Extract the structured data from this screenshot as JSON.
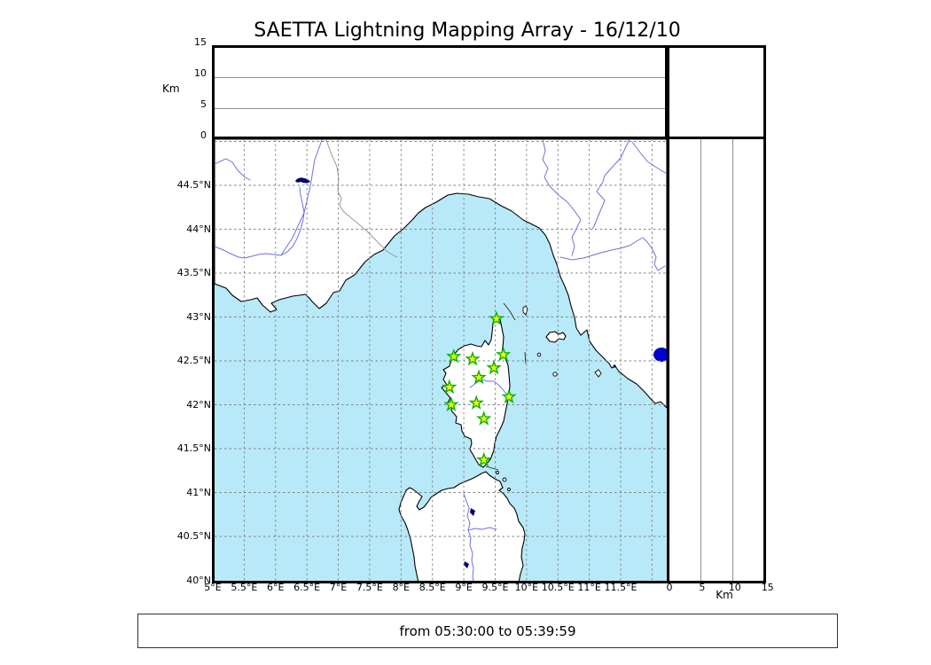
{
  "title": "SAETTA Lightning Mapping Array - 16/12/10",
  "footer": {
    "time_range": "from 05:30:00 to 05:39:59"
  },
  "altitude_axis": {
    "label": "Km",
    "ticks": [
      {
        "v": 0,
        "label": "0"
      },
      {
        "v": 5,
        "label": "5"
      },
      {
        "v": 10,
        "label": "10"
      },
      {
        "v": 15,
        "label": "15"
      }
    ]
  },
  "map": {
    "lon_ticks": [
      {
        "v": 5,
        "label": "5°E"
      },
      {
        "v": 5.5,
        "label": "5.5°E"
      },
      {
        "v": 6,
        "label": "6°E"
      },
      {
        "v": 6.5,
        "label": "6.5°E"
      },
      {
        "v": 7,
        "label": "7°E"
      },
      {
        "v": 7.5,
        "label": "7.5°E"
      },
      {
        "v": 8,
        "label": "8°E"
      },
      {
        "v": 8.5,
        "label": "8.5°E"
      },
      {
        "v": 9,
        "label": "9°E"
      },
      {
        "v": 9.5,
        "label": "9.5°E"
      },
      {
        "v": 10,
        "label": "10°E"
      },
      {
        "v": 10.5,
        "label": "10.5°E"
      },
      {
        "v": 11,
        "label": "11°E"
      },
      {
        "v": 11.5,
        "label": "11.5°E"
      }
    ],
    "lat_ticks": [
      {
        "v": 40,
        "label": "40°N"
      },
      {
        "v": 40.5,
        "label": "40.5°N"
      },
      {
        "v": 41,
        "label": "41°N"
      },
      {
        "v": 41.5,
        "label": "41.5°N"
      },
      {
        "v": 42,
        "label": "42°N"
      },
      {
        "v": 42.5,
        "label": "42.5°N"
      },
      {
        "v": 43,
        "label": "43°N"
      },
      {
        "v": 43.5,
        "label": "43.5°N"
      },
      {
        "v": 44,
        "label": "44°N"
      },
      {
        "v": 44.5,
        "label": "44.5°N"
      }
    ],
    "stations": [
      {
        "lon": 9.52,
        "lat": 42.98
      },
      {
        "lon": 8.84,
        "lat": 42.55
      },
      {
        "lon": 9.14,
        "lat": 42.52
      },
      {
        "lon": 9.63,
        "lat": 42.57
      },
      {
        "lon": 9.48,
        "lat": 42.42
      },
      {
        "lon": 9.24,
        "lat": 42.31
      },
      {
        "lon": 8.77,
        "lat": 42.2
      },
      {
        "lon": 9.72,
        "lat": 42.09
      },
      {
        "lon": 9.2,
        "lat": 42.02
      },
      {
        "lon": 8.8,
        "lat": 42.0
      },
      {
        "lon": 9.32,
        "lat": 41.84
      },
      {
        "lon": 9.32,
        "lat": 41.37
      }
    ],
    "colors": {
      "sea": "#b8e9f8",
      "land": "#ffffff",
      "river": "#6f6fe0",
      "lake": "#0000cc",
      "dark_lake": "#000066",
      "grid": "#808080",
      "station_fill": "#ffff00",
      "station_stroke": "#00b200"
    }
  }
}
